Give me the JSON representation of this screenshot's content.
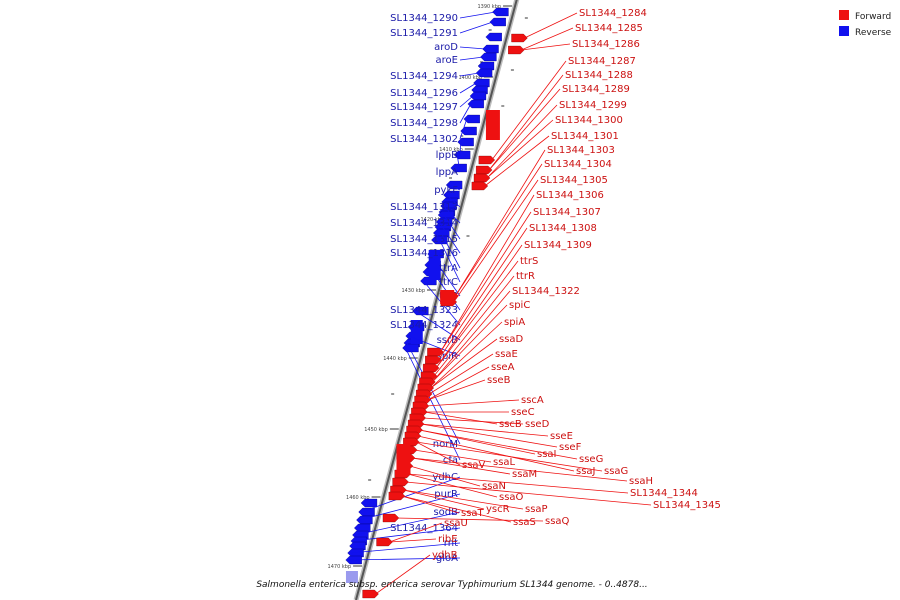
{
  "caption": "Salmonella enterica subsp. enterica serovar Typhimurium SL1344 genome. - 0..4878...",
  "legend": [
    {
      "label": "Forward",
      "color": "#ee1111"
    },
    {
      "label": "Reverse",
      "color": "#1111ee"
    }
  ],
  "ticks": [
    "1390 kbp",
    "1400 kbp",
    "1410 kbp",
    "1420 kbp",
    "1430 kbp",
    "1440 kbp",
    "1450 kbp",
    "1460 kbp",
    "1470 kbp"
  ],
  "reverse_labels": [
    "SL1344_1290",
    "SL1344_1291",
    "aroD",
    "aroE",
    "SL1344_1294",
    "SL1344_1296",
    "SL1344_1297",
    "SL1344_1298",
    "SL1344_1302",
    "lppB",
    "lppA",
    "pykF",
    "SL1344_1313",
    "SL1344_1314",
    "SL1344_1315",
    "SL1344_1316",
    "ttrA",
    "ttrC",
    "ttrB",
    "SL1344_1323",
    "SL1344_1324",
    "ssrB",
    "spiR",
    "norM",
    "cfa",
    "ydhC",
    "purR",
    "sodB",
    "SL1344_1364",
    "rnt",
    "gloA"
  ],
  "forward_labels": [
    "SL1344_1284",
    "SL1344_1285",
    "SL1344_1286",
    "SL1344_1287",
    "SL1344_1288",
    "SL1344_1289",
    "SL1344_1299",
    "SL1344_1300",
    "SL1344_1301",
    "SL1344_1303",
    "SL1344_1304",
    "SL1344_1305",
    "SL1344_1306",
    "SL1344_1307",
    "SL1344_1308",
    "SL1344_1309",
    "ttrS",
    "ttrR",
    "SL1344_1322",
    "spiC",
    "spiA",
    "ssaD",
    "ssaE",
    "sseA",
    "sseB",
    "sscA",
    "sseC",
    "sscB",
    "sseD",
    "sseE",
    "sseF",
    "ssaI",
    "sseG",
    "ssaJ",
    "ssaG",
    "ssaV",
    "ssaL",
    "ssaM",
    "ssaH",
    "ssaN",
    "SL1344_1344",
    "ssaO",
    "SL1344_1345",
    "yscR",
    "ssaP",
    "ssaT",
    "ssaS",
    "ssaQ",
    "ssaU",
    "ribE",
    "ydhB"
  ]
}
